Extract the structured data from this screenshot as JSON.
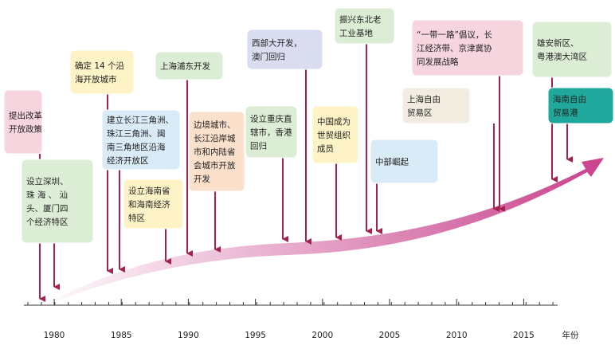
{
  "axis": {
    "ticks": [
      "1980",
      "1985",
      "1990",
      "1995",
      "2000",
      "2005",
      "2010",
      "2015"
    ],
    "unit": "年份"
  },
  "events": [
    {
      "lines": [
        "提出改革",
        "开放政策"
      ]
    },
    {
      "lines": [
        "设立深圳、",
        "珠 海 、 汕",
        "头、厦门四",
        "个经济特区"
      ]
    },
    {
      "lines": [
        "确定 14 个沿",
        "海开放城市"
      ]
    },
    {
      "lines": [
        "建立长江三角洲、",
        "珠江三角洲、闽",
        "南三角地区沿海",
        "经济开放区"
      ]
    },
    {
      "lines": [
        "设立海南省",
        "和海南经济",
        "特区"
      ]
    },
    {
      "lines": [
        "上海浦东开发"
      ]
    },
    {
      "lines": [
        "边境城市、",
        "长江沿岸城",
        "市和内陆省",
        "会城市开放",
        "开发"
      ]
    },
    {
      "lines": [
        "西部大开发，",
        "澳门回归"
      ]
    },
    {
      "lines": [
        "设立重庆直",
        "辖市，香港",
        "回归"
      ]
    },
    {
      "lines": [
        "中国成为",
        "世贸组织",
        "成员"
      ]
    },
    {
      "lines": [
        "振兴东北老",
        "工业基地"
      ]
    },
    {
      "lines": [
        "中部崛起"
      ]
    },
    {
      "lines": [
        "“一带一路”倡议，长",
        "江经济带、京津冀协",
        "同发展战略"
      ]
    },
    {
      "lines": [
        "上海自由",
        "贸易区"
      ]
    },
    {
      "lines": [
        "雄安新区、",
        "粤港澳大湾区"
      ]
    },
    {
      "lines": [
        "海南自由",
        "贸易港"
      ]
    }
  ]
}
